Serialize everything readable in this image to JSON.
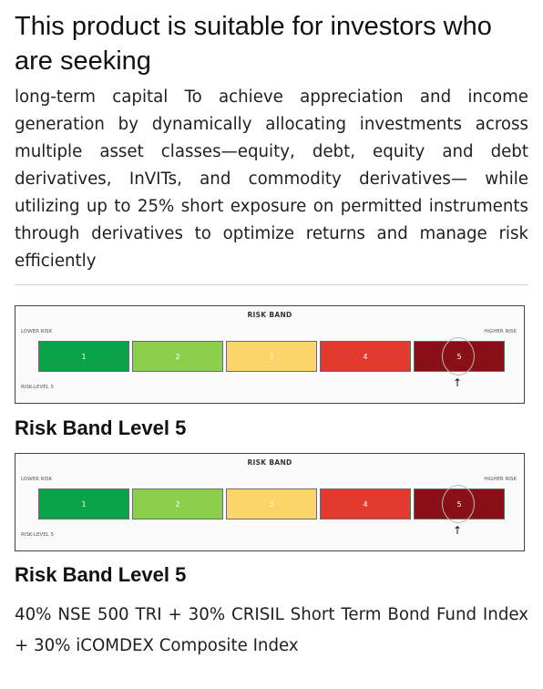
{
  "heading": "This product is suitable for investors who are seeking",
  "description": "long-term capital To achieve appreciation and income generation by dynamically allocating investments across multiple asset classes—equity, debt, equity and debt derivatives, InVITs, and commodity derivatives— while utilizing up to 25% short exposure on permitted instruments through derivatives to optimize returns and manage risk efficiently",
  "risk_bands": [
    {
      "image": {
        "title": "RISK BAND",
        "lower_label": "LOWER RISK",
        "higher_label": "HIGHER RISK",
        "level_label": "RISK-LEVEL 5",
        "segments": [
          "1",
          "2",
          "3",
          "4",
          "5"
        ],
        "selected_level": 5,
        "colors": [
          "#0aa34a",
          "#8ccf4f",
          "#fbd46a",
          "#e23b2e",
          "#8a1018"
        ]
      },
      "caption": "Risk Band Level 5"
    },
    {
      "image": {
        "title": "RISK BAND",
        "lower_label": "LOWER RISK",
        "higher_label": "HIGHER RISK",
        "level_label": "RISK-LEVEL 5",
        "segments": [
          "1",
          "2",
          "3",
          "4",
          "5"
        ],
        "selected_level": 5,
        "colors": [
          "#0aa34a",
          "#8ccf4f",
          "#fbd46a",
          "#e23b2e",
          "#8a1018"
        ]
      },
      "caption": "Risk Band Level 5"
    }
  ],
  "benchmark": "40% NSE 500 TRI + 30% CRISIL Short Term Bond Fund Index + 30% iCOMDEX Composite Index"
}
